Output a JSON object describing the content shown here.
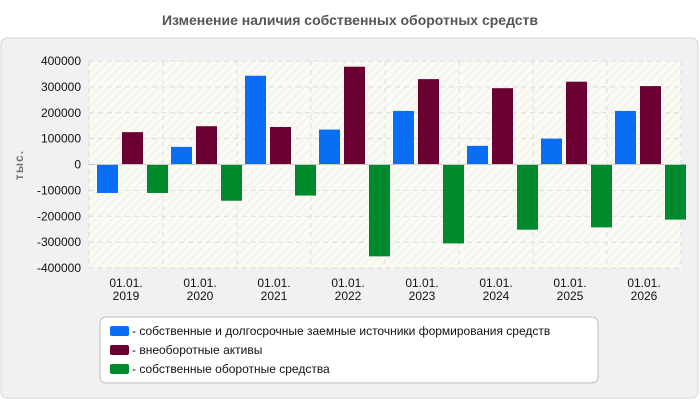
{
  "chart_data": {
    "type": "bar",
    "title": "Изменение наличия собственных оборотных средств",
    "xlabel": "",
    "ylabel": "тыс.",
    "ylim": [
      -400000,
      400000
    ],
    "y_ticks": [
      400000,
      300000,
      200000,
      100000,
      0,
      -100000,
      -200000,
      -300000,
      -400000
    ],
    "grid": true,
    "legend_position": "bottom",
    "categories": [
      [
        "01.01.",
        "2019"
      ],
      [
        "01.01.",
        "2020"
      ],
      [
        "01.01.",
        "2021"
      ],
      [
        "01.01.",
        "2022"
      ],
      [
        "01.01.",
        "2023"
      ],
      [
        "01.01.",
        "2024"
      ],
      [
        "01.01.",
        "2025"
      ],
      [
        "01.01.",
        "2026"
      ]
    ],
    "series": [
      {
        "name": "- собственные и долгосрочные заемные источники формирования средств",
        "color": "#0a6ef5",
        "values": [
          -110000,
          68000,
          343000,
          135000,
          207000,
          72000,
          100000,
          207000
        ]
      },
      {
        "name": "- внеоборотные активы",
        "color": "#6b0032",
        "values": [
          125000,
          148000,
          145000,
          378000,
          330000,
          295000,
          320000,
          303000
        ]
      },
      {
        "name": "- собственные оборотные средства",
        "color": "#008a2e",
        "values": [
          -110000,
          -140000,
          -120000,
          -355000,
          -305000,
          -252000,
          -243000,
          -213000
        ]
      }
    ]
  }
}
